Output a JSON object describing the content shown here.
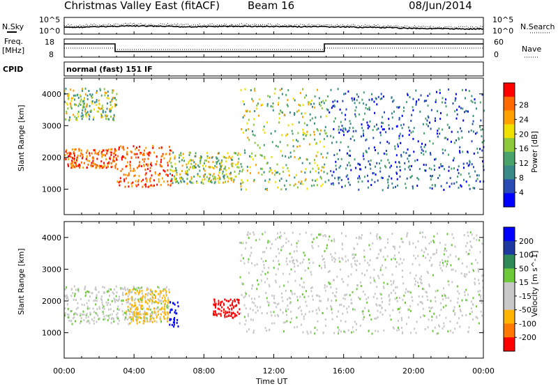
{
  "header": {
    "title": "Christmas Valley East (fitACF)",
    "beam": "Beam 16",
    "date": "08/Jun/2014"
  },
  "panel_labels": {
    "nsky": "N.Sky",
    "nsearch": "N.Search",
    "freq_line1": "Freq.",
    "freq_line2": "[MHz]",
    "nave": "Nave",
    "cpid": "CPID",
    "mode": "normal (fast) 151 IF"
  },
  "noise_ticks": {
    "left_top": "10^5",
    "left_bottom": "10^0",
    "right_top": "10^5",
    "right_bottom": "10^0"
  },
  "freq_ticks": {
    "left_top": "18",
    "left_bottom": "8",
    "right_top": "60",
    "right_bottom": "0"
  },
  "colors": {
    "power_scale": [
      "#0000ff",
      "#2a4ab4",
      "#3a8a8a",
      "#4aa36a",
      "#8cc83a",
      "#f0e000",
      "#ffa000",
      "#ff6a00",
      "#ff0000"
    ],
    "velocity_scale": [
      "#0000ff",
      "#1e3aa0",
      "#2f8a5a",
      "#6dc83a",
      "#c8c8c8",
      "#c8c8c8",
      "#ffb400",
      "#ff7800",
      "#ff0000"
    ]
  },
  "chart_data": [
    {
      "type": "heatmap",
      "id": "power",
      "title": "",
      "xlabel": "Time UT",
      "ylabel": "Slant Range [km]",
      "xlim": [
        "00:00",
        "24:00"
      ],
      "ylim": [
        200,
        4500
      ],
      "x_ticks": [
        "00:00",
        "04:00",
        "08:00",
        "12:00",
        "16:00",
        "20:00",
        "00:00"
      ],
      "y_ticks": [
        "1000",
        "2000",
        "3000",
        "4000"
      ],
      "colorbar": {
        "label": "Power [dB]",
        "ticks": [
          "4",
          "8",
          "12",
          "16",
          "20",
          "24",
          "28"
        ],
        "range": [
          0,
          30
        ]
      },
      "features": [
        {
          "start": "00:00",
          "end": "03:00",
          "range": [
            1700,
            2300
          ],
          "level": "high"
        },
        {
          "start": "00:00",
          "end": "03:00",
          "range": [
            3200,
            4200
          ],
          "level": "medium"
        },
        {
          "start": "03:00",
          "end": "06:10",
          "range": [
            1100,
            2400
          ],
          "level": "high"
        },
        {
          "start": "06:00",
          "end": "10:00",
          "range": [
            1200,
            2200
          ],
          "level": "medium"
        },
        {
          "start": "10:00",
          "end": "15:00",
          "range": [
            1000,
            4200
          ],
          "level": "medium"
        },
        {
          "start": "15:00",
          "end": "24:00",
          "range": [
            1000,
            4200
          ],
          "level": "low"
        }
      ]
    },
    {
      "type": "heatmap",
      "id": "velocity",
      "title": "",
      "xlabel": "Time UT",
      "ylabel": "Slant Range [km]",
      "xlim": [
        "00:00",
        "24:00"
      ],
      "ylim": [
        200,
        4500
      ],
      "x_ticks": [
        "00:00",
        "04:00",
        "08:00",
        "12:00",
        "16:00",
        "20:00",
        "00:00"
      ],
      "y_ticks": [
        "1000",
        "2000",
        "3000",
        "4000"
      ],
      "colorbar": {
        "label": "Velocity [m s^-1]",
        "ticks": [
          "200",
          "100",
          "50",
          "15",
          "-15",
          "-50",
          "-100",
          "-200"
        ],
        "range": [
          -250,
          250
        ]
      },
      "features": [
        {
          "start": "00:00",
          "end": "06:00",
          "range": [
            1300,
            2500
          ],
          "velocity": 0
        },
        {
          "start": "03:30",
          "end": "06:00",
          "range": [
            1300,
            2400
          ],
          "velocity": -50
        },
        {
          "start": "06:00",
          "end": "06:30",
          "range": [
            1200,
            2000
          ],
          "velocity": 200
        },
        {
          "start": "08:30",
          "end": "10:00",
          "range": [
            1500,
            2100
          ],
          "velocity": -200
        },
        {
          "start": "10:00",
          "end": "24:00",
          "range": [
            1000,
            4200
          ],
          "velocity": 0
        }
      ]
    }
  ]
}
